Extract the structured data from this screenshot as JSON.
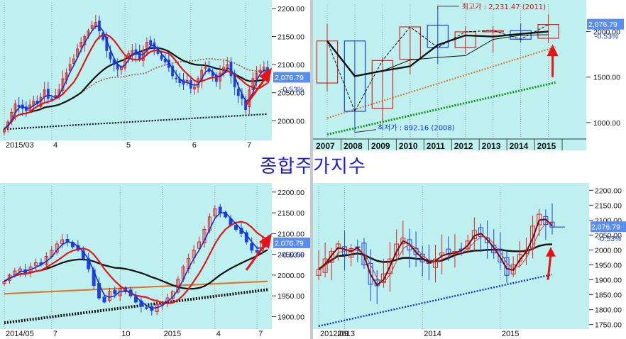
{
  "title": "종합주가지수",
  "colors": {
    "panel_bg": "#bff0f0",
    "axis_bg": "#ffffff",
    "up": "#e02020",
    "down": "#2040e0",
    "ma5": "#1030d0",
    "ma20": "#e01818",
    "ma60": "#111111",
    "ma120": "#e07020",
    "ma240": "#111111",
    "arrow": "#ee1111",
    "price_label_bg": "#5a8df0"
  },
  "chart_data": [
    {
      "id": "daily",
      "type": "candlestick",
      "period": "2015/03 – 2015/07",
      "x_tick_labels": [
        "2015/03",
        "4",
        "5",
        "6",
        "7"
      ],
      "y_ticks": [
        2000.0,
        2050.0,
        2100.0,
        2150.0,
        2200.0
      ],
      "ylim": [
        1965,
        2210
      ],
      "current_price": "2,076.79",
      "change": "-0.53%",
      "close_series": [
        1985,
        1998,
        2015,
        2030,
        2025,
        2022,
        2018,
        2028,
        2035,
        2030,
        2042,
        2055,
        2040,
        2038,
        2045,
        2055,
        2075,
        2085,
        2100,
        2110,
        2128,
        2140,
        2150,
        2160,
        2170,
        2175,
        2160,
        2145,
        2125,
        2110,
        2100,
        2092,
        2095,
        2110,
        2120,
        2125,
        2118,
        2110,
        2125,
        2140,
        2135,
        2128,
        2120,
        2110,
        2105,
        2095,
        2080,
        2075,
        2068,
        2065,
        2072,
        2058,
        2060,
        2075,
        2090,
        2095,
        2088,
        2080,
        2070,
        2085,
        2095,
        2100,
        2080,
        2060,
        2045,
        2040,
        2020,
        2055,
        2075,
        2085,
        2090,
        2095,
        2076.79
      ]
    },
    {
      "id": "yearly",
      "type": "candlestick",
      "categories": [
        "2007",
        "2008",
        "2009",
        "2010",
        "2011",
        "2012",
        "2013",
        "2014",
        "2015"
      ],
      "open": [
        1435,
        1897,
        1157,
        1696,
        2070,
        1826,
        1997,
        2011,
        1926
      ],
      "high": [
        2085,
        1901,
        1723,
        2052,
        2231.47,
        2057,
        2064,
        2093,
        2189
      ],
      "low": [
        1345,
        892.16,
        1018,
        1532,
        1644,
        1758,
        1770,
        1881,
        1876
      ],
      "close": [
        1897,
        1124,
        1682,
        2051,
        1826,
        1997,
        2011,
        1916,
        2076.79
      ],
      "y_ticks": [
        1000.0,
        1500.0,
        2000.0
      ],
      "ylim": [
        820,
        2300
      ],
      "current_price": "2,076.79",
      "change": "-0.53%",
      "annotations": [
        {
          "text": "최고가 : 2,231.47 (2011)",
          "year": "2011",
          "value": 2231.47
        },
        {
          "text": "최저가 : 892.16 (2008)",
          "year": "2008",
          "value": 892.16
        }
      ]
    },
    {
      "id": "weekly",
      "type": "candlestick",
      "period": "2014/05 – 2015/07",
      "x_tick_labels": [
        "2014/05",
        "7",
        "10",
        "2015",
        "4",
        "7"
      ],
      "y_ticks": [
        1900.0,
        1950.0,
        2000.0,
        2050.0,
        2100.0,
        2150.0,
        2200.0
      ],
      "ylim": [
        1870,
        2215
      ],
      "current_price": "2,076.79",
      "change": "-0.53%",
      "close_series": [
        1985,
        2000,
        2010,
        2015,
        2005,
        2020,
        2030,
        2025,
        2045,
        2060,
        2075,
        2085,
        2080,
        2068,
        2060,
        2040,
        2015,
        1975,
        1945,
        1935,
        1960,
        1955,
        1968,
        1960,
        1950,
        1935,
        1925,
        1920,
        1915,
        1930,
        1935,
        1945,
        1960,
        1990,
        2020,
        2040,
        2060,
        2080,
        2110,
        2140,
        2160,
        2150,
        2140,
        2120,
        2110,
        2100,
        2080,
        2060,
        2055,
        2080,
        2076.79
      ]
    },
    {
      "id": "monthly",
      "type": "candlestick",
      "period": "2012/09 – 2015/07",
      "x_tick_labels": [
        "2012/09",
        "2013",
        "2014",
        "2015"
      ],
      "y_ticks": [
        1750.0,
        1800.0,
        1850.0,
        1900.0,
        1950.0,
        2000.0,
        2050.0,
        2100.0,
        2150.0,
        2200.0
      ],
      "ylim": [
        1735,
        2215
      ],
      "current_price": "2,076.79",
      "change": "-0.53%",
      "close_series": [
        1935,
        1970,
        1995,
        2020,
        1985,
        2005,
        2010,
        1950,
        1885,
        1880,
        1920,
        1970,
        2020,
        2040,
        2000,
        1985,
        1960,
        1955,
        1970,
        1990,
        1985,
        1995,
        2000,
        2030,
        2065,
        2045,
        2025,
        1990,
        1960,
        1915,
        1950,
        1985,
        2000,
        2080,
        2120,
        2085,
        2076.79
      ]
    }
  ]
}
